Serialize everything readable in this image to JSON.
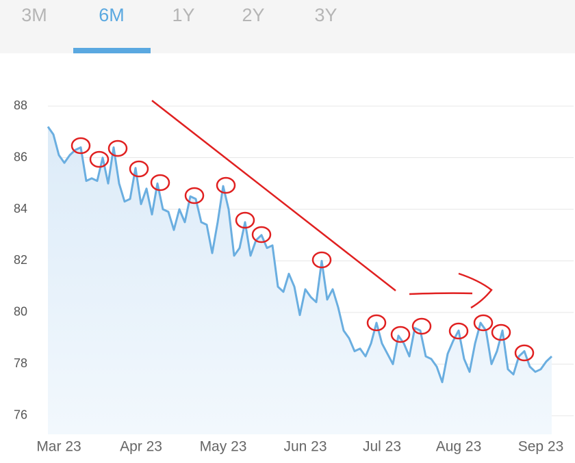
{
  "tabs": [
    "3M",
    "6M",
    "1Y",
    "2Y",
    "3Y"
  ],
  "selected_tab": 1,
  "chart_data": {
    "type": "area",
    "color": "#6aaee0",
    "categories": [
      null,
      null,
      "Mar 23",
      null,
      null,
      null,
      null,
      null,
      null,
      null,
      null,
      null,
      null,
      null,
      null,
      null,
      null,
      "Apr 23",
      null,
      null,
      null,
      null,
      null,
      null,
      null,
      null,
      null,
      null,
      null,
      null,
      null,
      null,
      "May 23",
      null,
      null,
      null,
      null,
      null,
      null,
      null,
      null,
      null,
      null,
      null,
      null,
      null,
      null,
      "Jun 23",
      null,
      null,
      null,
      null,
      null,
      null,
      null,
      null,
      null,
      null,
      null,
      null,
      null,
      "Jul 23",
      null,
      null,
      null,
      null,
      null,
      null,
      null,
      null,
      null,
      null,
      null,
      null,
      null,
      "Aug 23",
      null,
      null,
      null,
      null,
      null,
      null,
      null,
      null,
      null,
      null,
      null,
      null,
      null,
      null,
      "Sep 23",
      null,
      null
    ],
    "values": [
      87.2,
      86.9,
      86.1,
      85.8,
      86.1,
      86.3,
      86.4,
      85.1,
      85.2,
      85.1,
      86.0,
      85.0,
      86.4,
      85.0,
      84.3,
      84.4,
      85.6,
      84.2,
      84.8,
      83.8,
      85.0,
      84.0,
      83.9,
      83.2,
      84.0,
      83.5,
      84.5,
      84.4,
      83.5,
      83.4,
      82.3,
      83.5,
      84.9,
      84.0,
      82.2,
      82.5,
      83.5,
      82.2,
      82.8,
      83.0,
      82.5,
      82.6,
      81.0,
      80.8,
      81.5,
      81.0,
      79.9,
      80.9,
      80.6,
      80.4,
      82.0,
      80.5,
      80.9,
      80.2,
      79.3,
      79.0,
      78.5,
      78.6,
      78.3,
      78.8,
      79.6,
      78.8,
      78.4,
      78.0,
      79.1,
      78.8,
      78.3,
      79.4,
      79.3,
      78.3,
      78.2,
      77.9,
      77.3,
      78.4,
      78.9,
      79.3,
      78.2,
      77.7,
      78.8,
      79.6,
      79.3,
      78.0,
      78.5,
      79.3,
      77.8,
      77.6,
      78.3,
      78.5,
      77.9,
      77.7,
      77.8,
      78.1,
      78.3
    ],
    "ylim": [
      75.28,
      88.4
    ],
    "yticks": [
      76,
      78,
      80,
      82,
      84,
      86,
      88
    ],
    "grid": true
  }
}
